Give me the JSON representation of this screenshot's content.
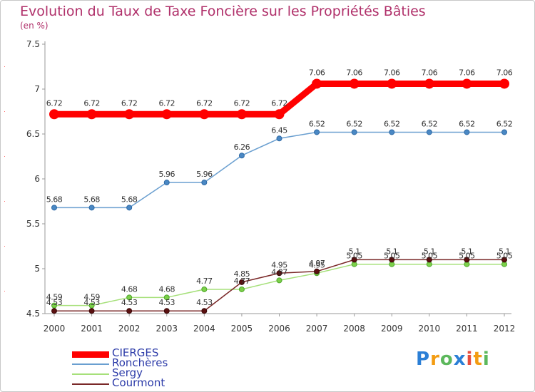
{
  "chart_data": {
    "type": "line",
    "title": "Evolution du Taux de Taxe Foncière sur les Propriétés Bâties",
    "ylabel": "(en %)",
    "xlabel": "",
    "ylim": [
      4.5,
      7.5
    ],
    "yticks": [
      "7.5",
      "7",
      "6.5",
      "6",
      "5.5",
      "5",
      "4.5"
    ],
    "categories": [
      "2000",
      "2001",
      "2002",
      "2003",
      "2004",
      "2005",
      "2006",
      "2007",
      "2008",
      "2009",
      "2010",
      "2011",
      "2012"
    ],
    "series": [
      {
        "name": "CIERGES",
        "color": "#ff0000",
        "values": [
          6.72,
          6.72,
          6.72,
          6.72,
          6.72,
          6.72,
          6.72,
          7.06,
          7.06,
          7.06,
          7.06,
          7.06,
          7.06
        ],
        "labels": [
          "6.72",
          "6.72",
          "6.72",
          "6.72",
          "6.72",
          "6.72",
          "6.72",
          "7.06",
          "7.06",
          "7.06",
          "7.06",
          "7.06",
          "7.06"
        ]
      },
      {
        "name": "Ronchères",
        "color": "#6a9fd0",
        "values": [
          5.68,
          5.68,
          5.68,
          5.96,
          5.96,
          6.26,
          6.45,
          6.52,
          6.52,
          6.52,
          6.52,
          6.52,
          6.52
        ],
        "labels": [
          "5.68",
          "5.68",
          "5.68",
          "5.96",
          "5.96",
          "6.26",
          "6.45",
          "6.52",
          "6.52",
          "6.52",
          "6.52",
          "6.52",
          "6.52"
        ]
      },
      {
        "name": "Sergy",
        "color": "#a6e07a",
        "values": [
          4.59,
          4.59,
          4.68,
          4.68,
          4.77,
          4.77,
          4.87,
          4.95,
          5.05,
          5.05,
          5.05,
          5.05,
          5.05
        ],
        "labels": [
          "4.59",
          "4.59",
          "4.68",
          "4.68",
          "4.77",
          "4.77",
          "4.87",
          "4.95",
          "5.05",
          "5.05",
          "5.05",
          "5.05",
          "5.05"
        ]
      },
      {
        "name": "Courmont",
        "color": "#7a2828",
        "values": [
          4.53,
          4.53,
          4.53,
          4.53,
          4.53,
          4.85,
          4.95,
          4.97,
          5.1,
          5.1,
          5.1,
          5.1,
          5.1
        ],
        "labels": [
          "4.53",
          "4.53",
          "4.53",
          "4.53",
          "4.53",
          "4.85",
          "4.95",
          "4.97",
          "5.1",
          "5.1",
          "5.1",
          "5.1",
          "5.1"
        ]
      }
    ],
    "legend": "bottom-left",
    "grid": false
  },
  "brand": {
    "letters": [
      "P",
      "r",
      "o",
      "x",
      "i",
      "t",
      "i"
    ],
    "colors": [
      "#2b7fd6",
      "#f39c12",
      "#5cb85c",
      "#2b7fd6",
      "#e74c3c",
      "#f39c12",
      "#5cb85c"
    ]
  }
}
